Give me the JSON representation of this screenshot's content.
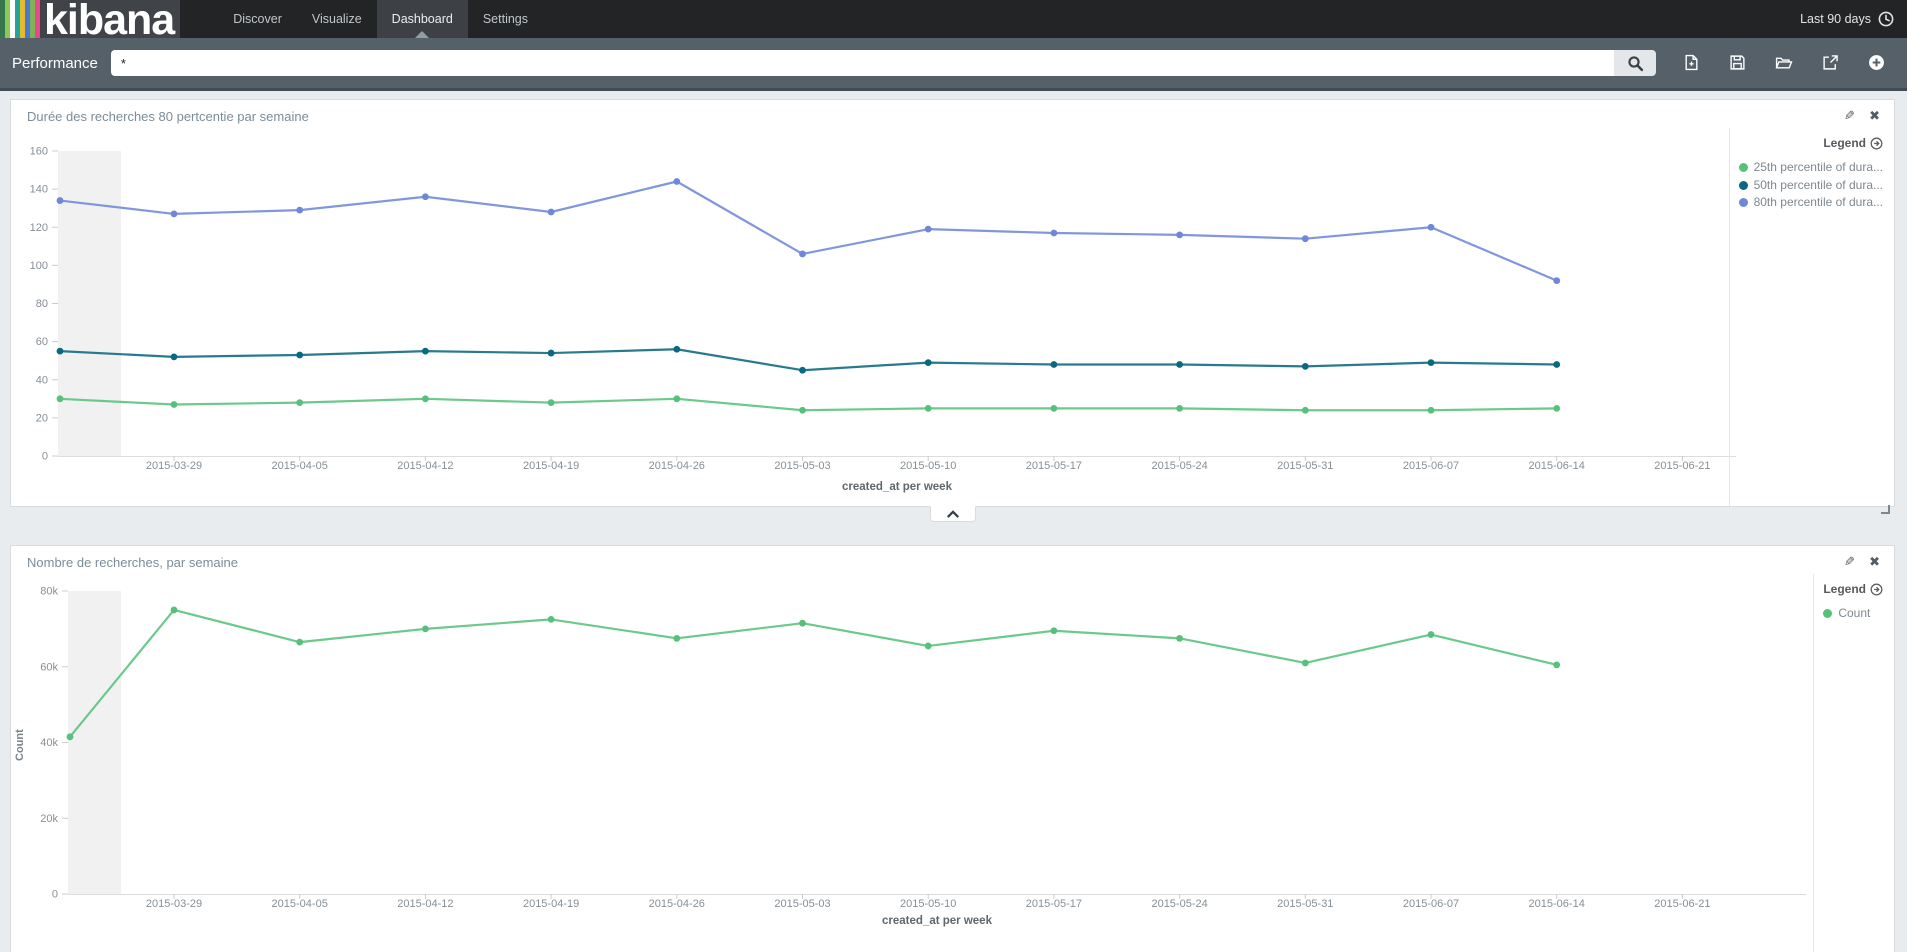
{
  "navbar": {
    "brand": "kibana",
    "items": [
      {
        "label": "Discover",
        "active": false
      },
      {
        "label": "Visualize",
        "active": false
      },
      {
        "label": "Dashboard",
        "active": true
      },
      {
        "label": "Settings",
        "active": false
      }
    ],
    "time_filter": "Last 90 days",
    "logo_stripe_colors": [
      "#35764e",
      "#8bc855",
      "#ffffff",
      "#22a39b",
      "#e3bc2c",
      "#4b77d3",
      "#7db356",
      "#e8478b"
    ]
  },
  "toolbar": {
    "dashboard_title": "Performance",
    "search_value": "*"
  },
  "panels": [
    {
      "title": "Durée des recherches 80 pertcentie par semaine",
      "legend_title": "Legend",
      "legend_items": [
        {
          "label": "25th percentile of dura...",
          "color": "#57c17b"
        },
        {
          "label": "50th percentile of dura...",
          "color": "#0a6880"
        },
        {
          "label": "80th percentile of dura...",
          "color": "#6f87d8"
        }
      ]
    },
    {
      "title": "Nombre de recherches, par semaine",
      "legend_title": "Legend",
      "legend_items": [
        {
          "label": "Count",
          "color": "#57c17b"
        }
      ]
    }
  ],
  "chart_data": [
    {
      "type": "line",
      "title": "Durée des recherches 80 pertcentie par semaine",
      "xlabel": "created_at per week",
      "ylabel": "",
      "ylim": [
        0,
        160
      ],
      "yticks": [
        0,
        20,
        40,
        60,
        80,
        100,
        120,
        140,
        160
      ],
      "ytick_labels": [
        "0",
        "20",
        "40",
        "60",
        "80",
        "100",
        "120",
        "140",
        "160"
      ],
      "x_tick_labels": [
        "2015-03-29",
        "2015-04-05",
        "2015-04-12",
        "2015-04-19",
        "2015-04-26",
        "2015-05-03",
        "2015-05-10",
        "2015-05-17",
        "2015-05-24",
        "2015-05-31",
        "2015-06-07",
        "2015-06-14",
        "2015-06-21"
      ],
      "legend_position": "right",
      "grid": false,
      "first_point_at_left_edge": true,
      "series": [
        {
          "name": "25th percentile of dura...",
          "color": "#57c17b",
          "values": [
            30,
            27,
            28,
            30,
            28,
            30,
            24,
            25,
            25,
            25,
            24,
            24,
            25
          ]
        },
        {
          "name": "50th percentile of dura...",
          "color": "#0a6880",
          "values": [
            55,
            52,
            53,
            55,
            54,
            56,
            45,
            49,
            48,
            48,
            47,
            49,
            48
          ]
        },
        {
          "name": "80th percentile of dura...",
          "color": "#6f87d8",
          "values": [
            134,
            127,
            129,
            136,
            128,
            144,
            106,
            119,
            117,
            116,
            114,
            120,
            92
          ]
        }
      ]
    },
    {
      "type": "line",
      "title": "Nombre de recherches, par semaine",
      "xlabel": "created_at per week",
      "ylabel": "Count",
      "ylim": [
        0,
        80000
      ],
      "yticks": [
        0,
        20000,
        40000,
        60000,
        80000
      ],
      "ytick_labels": [
        "0",
        "20k",
        "40k",
        "60k",
        "80k"
      ],
      "x_tick_labels": [
        "2015-03-29",
        "2015-04-05",
        "2015-04-12",
        "2015-04-19",
        "2015-04-26",
        "2015-05-03",
        "2015-05-10",
        "2015-05-17",
        "2015-05-24",
        "2015-05-31",
        "2015-06-07",
        "2015-06-14",
        "2015-06-21"
      ],
      "legend_position": "right",
      "grid": false,
      "first_point_at_left_edge": true,
      "series": [
        {
          "name": "Count",
          "color": "#57c17b",
          "values": [
            41500,
            75000,
            66500,
            70000,
            72500,
            67500,
            71500,
            65500,
            69500,
            67500,
            61000,
            68500,
            60500
          ]
        }
      ]
    }
  ]
}
